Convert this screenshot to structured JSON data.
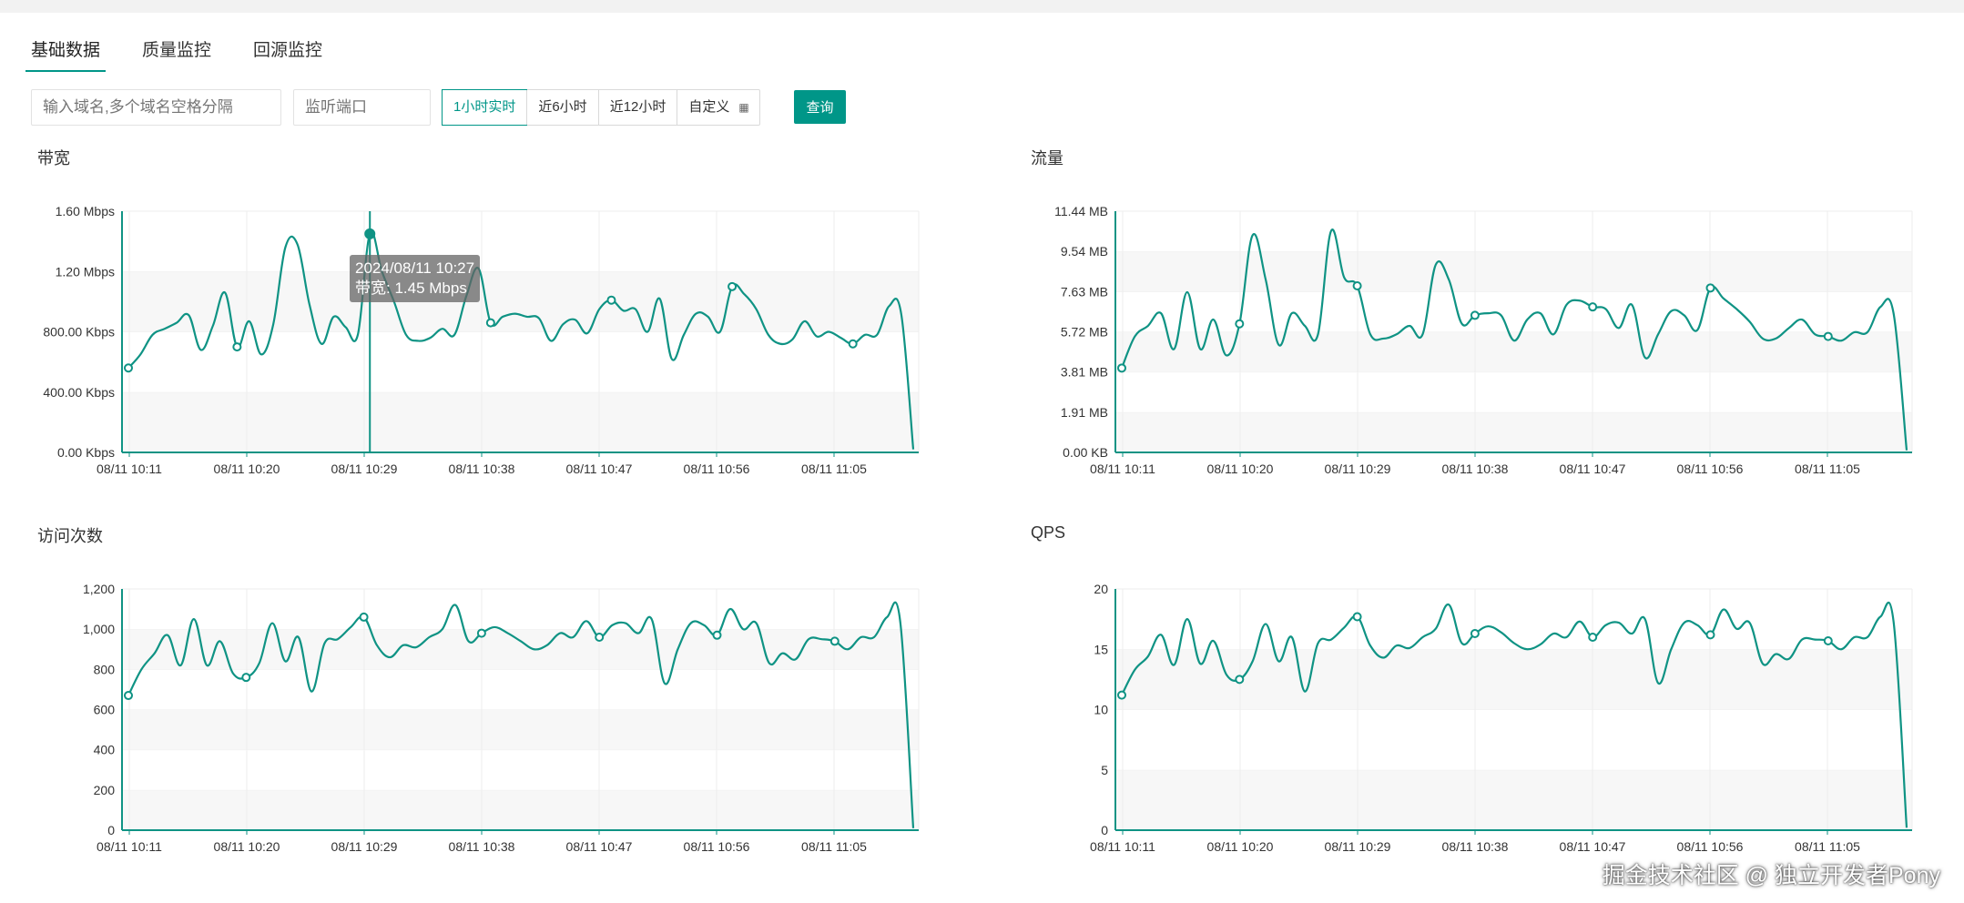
{
  "tabs": [
    "基础数据",
    "质量监控",
    "回源监控"
  ],
  "toolbar": {
    "domain_placeholder": "输入域名,多个域名空格分隔",
    "port_placeholder": "监听端口",
    "ranges": [
      "1小时实时",
      "近6小时",
      "近12小时",
      "自定义"
    ],
    "selected_range": "1小时实时",
    "query_label": "查询"
  },
  "tooltip": {
    "time": "2024/08/11 10:27",
    "label": "带宽: 1.45 Mbps"
  },
  "watermark": "掘金技术社区 @ 独立开发者Pony",
  "colors": {
    "accent": "#009688",
    "line": "#0f9384"
  },
  "chart_data": [
    {
      "type": "line",
      "title": "带宽",
      "x_ticks": [
        "08/11 10:11",
        "08/11 10:20",
        "08/11 10:29",
        "08/11 10:38",
        "08/11 10:47",
        "08/11 10:56",
        "08/11 11:05"
      ],
      "y_ticks": [
        "0.00 Kbps",
        "400.00 Kbps",
        "800.00 Kbps",
        "1.20 Mbps",
        "1.60 Mbps"
      ],
      "ymax": 1.6,
      "unit": "Mbps",
      "values": [
        0.56,
        0.65,
        0.78,
        0.82,
        0.86,
        0.91,
        0.68,
        0.84,
        1.06,
        0.7,
        0.87,
        0.65,
        0.85,
        1.36,
        1.38,
        0.98,
        0.72,
        0.9,
        0.83,
        0.78,
        1.45,
        1.2,
        1.0,
        0.78,
        0.74,
        0.76,
        0.82,
        0.78,
        1.04,
        1.22,
        0.86,
        0.9,
        0.92,
        0.9,
        0.89,
        0.74,
        0.85,
        0.88,
        0.79,
        0.95,
        1.01,
        0.94,
        0.95,
        0.8,
        1.02,
        0.62,
        0.78,
        0.92,
        0.9,
        0.8,
        1.1,
        1.05,
        0.95,
        0.78,
        0.72,
        0.75,
        0.87,
        0.77,
        0.8,
        0.76,
        0.72,
        0.78,
        0.78,
        0.97,
        0.92,
        0.02
      ],
      "markers": [
        0,
        9,
        20,
        30,
        40,
        50,
        60
      ],
      "highlight": 20
    },
    {
      "type": "line",
      "title": "流量",
      "x_ticks": [
        "08/11 10:11",
        "08/11 10:20",
        "08/11 10:29",
        "08/11 10:38",
        "08/11 10:47",
        "08/11 10:56",
        "08/11 11:05"
      ],
      "y_ticks": [
        "0.00 KB",
        "1.91 MB",
        "3.81 MB",
        "5.72 MB",
        "7.63 MB",
        "9.54 MB",
        "11.44 MB"
      ],
      "ymax": 11.44,
      "unit": "MB",
      "values": [
        4.0,
        5.5,
        6.0,
        6.6,
        4.9,
        7.6,
        4.9,
        6.3,
        4.6,
        6.1,
        10.3,
        8.2,
        5.1,
        6.6,
        6.0,
        5.6,
        10.5,
        8.3,
        7.9,
        5.6,
        5.4,
        5.6,
        6.0,
        5.6,
        8.9,
        8.2,
        6.1,
        6.5,
        6.6,
        6.5,
        5.3,
        6.3,
        6.6,
        5.6,
        7.0,
        7.2,
        6.9,
        6.8,
        5.9,
        7.0,
        4.5,
        5.6,
        6.7,
        6.5,
        5.8,
        7.8,
        7.3,
        6.8,
        6.2,
        5.4,
        5.4,
        5.9,
        6.3,
        5.6,
        5.5,
        5.3,
        5.7,
        5.7,
        6.9,
        6.6,
        0.1
      ],
      "markers": [
        0,
        9,
        18,
        27,
        36,
        45,
        54
      ],
      "highlight": -1
    },
    {
      "type": "line",
      "title": "访问次数",
      "x_ticks": [
        "08/11 10:11",
        "08/11 10:20",
        "08/11 10:29",
        "08/11 10:38",
        "08/11 10:47",
        "08/11 10:56",
        "08/11 11:05"
      ],
      "y_ticks": [
        "0",
        "200",
        "400",
        "600",
        "800",
        "1,000",
        "1,200"
      ],
      "ymax": 1200,
      "unit": "",
      "values": [
        670,
        800,
        880,
        970,
        820,
        1050,
        820,
        940,
        780,
        760,
        830,
        1030,
        840,
        960,
        690,
        930,
        950,
        1010,
        1060,
        920,
        860,
        920,
        910,
        960,
        1000,
        1120,
        940,
        980,
        1010,
        980,
        940,
        900,
        920,
        980,
        960,
        1040,
        960,
        1020,
        1030,
        980,
        1050,
        730,
        900,
        1030,
        1020,
        970,
        1100,
        1000,
        1030,
        830,
        880,
        850,
        950,
        950,
        940,
        900,
        960,
        960,
        1060,
        1040,
        10
      ],
      "markers": [
        0,
        9,
        18,
        27,
        36,
        45,
        54
      ],
      "highlight": -1
    },
    {
      "type": "line",
      "title": "QPS",
      "x_ticks": [
        "08/11 10:11",
        "08/11 10:20",
        "08/11 10:29",
        "08/11 10:38",
        "08/11 10:47",
        "08/11 10:56",
        "08/11 11:05"
      ],
      "y_ticks": [
        "0",
        "5",
        "10",
        "15",
        "20"
      ],
      "ymax": 20,
      "unit": "",
      "values": [
        11.2,
        13.3,
        14.4,
        16.2,
        13.7,
        17.5,
        13.8,
        15.7,
        12.9,
        12.5,
        14.0,
        17.1,
        14.0,
        16.0,
        11.5,
        15.5,
        15.8,
        16.8,
        17.7,
        15.3,
        14.3,
        15.3,
        15.1,
        16.0,
        16.7,
        18.7,
        15.5,
        16.3,
        16.9,
        16.4,
        15.5,
        15.0,
        15.4,
        16.3,
        16.0,
        17.3,
        16.0,
        17.0,
        17.2,
        16.3,
        17.5,
        12.2,
        15.0,
        17.2,
        17.0,
        16.2,
        18.3,
        16.7,
        17.2,
        13.8,
        14.6,
        14.2,
        15.8,
        15.8,
        15.7,
        15.0,
        16.0,
        16.0,
        17.7,
        17.3,
        0.2
      ],
      "markers": [
        0,
        9,
        18,
        27,
        36,
        45,
        54
      ],
      "highlight": -1
    }
  ]
}
